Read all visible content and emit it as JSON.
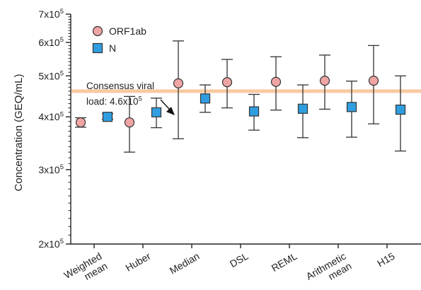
{
  "chart_data": {
    "type": "scatter",
    "ylabel": "Concentration (GEQ/mL)",
    "y_scale": "log",
    "ylim": [
      200000,
      700000
    ],
    "y_ticks": [
      {
        "value": 200000,
        "base": "2x10",
        "exp": "5"
      },
      {
        "value": 300000,
        "base": "3x10",
        "exp": "5"
      },
      {
        "value": 400000,
        "base": "4x10",
        "exp": "5"
      },
      {
        "value": 500000,
        "base": "5x10",
        "exp": "5"
      },
      {
        "value": 600000,
        "base": "6x10",
        "exp": "5"
      },
      {
        "value": 700000,
        "base": "7x10",
        "exp": "5"
      }
    ],
    "categories": [
      [
        "Weighted",
        "mean"
      ],
      [
        "Huber"
      ],
      [
        "Median"
      ],
      [
        "DSL"
      ],
      [
        "REML"
      ],
      [
        "Arithmetic",
        "mean"
      ],
      [
        "H15"
      ]
    ],
    "series": [
      {
        "name": "ORF1ab",
        "marker": "circle",
        "color": "#f0a5a5",
        "values": [
          388000,
          388000,
          480000,
          483000,
          484000,
          487000,
          487000
        ],
        "lower": [
          378000,
          330000,
          355000,
          420000,
          415000,
          417000,
          385000
        ],
        "upper": [
          398000,
          447000,
          605000,
          547000,
          555000,
          560000,
          590000
        ]
      },
      {
        "name": "N",
        "marker": "square",
        "color": "#2f9ee0",
        "values": [
          400000,
          410000,
          442000,
          412000,
          418000,
          422000,
          416000
        ],
        "lower": [
          395000,
          377000,
          410000,
          372000,
          357000,
          358000,
          332000
        ],
        "upper": [
          407000,
          443000,
          476000,
          452000,
          476000,
          486000,
          500000
        ]
      }
    ],
    "reference_line": {
      "value": 460000,
      "color": "#f8c9a0",
      "annotation_lines": [
        {
          "text": "Consensus viral"
        },
        {
          "text": "load: 4.6x10",
          "exp": "5"
        }
      ]
    },
    "legend_position": "top-left",
    "grid": false
  }
}
